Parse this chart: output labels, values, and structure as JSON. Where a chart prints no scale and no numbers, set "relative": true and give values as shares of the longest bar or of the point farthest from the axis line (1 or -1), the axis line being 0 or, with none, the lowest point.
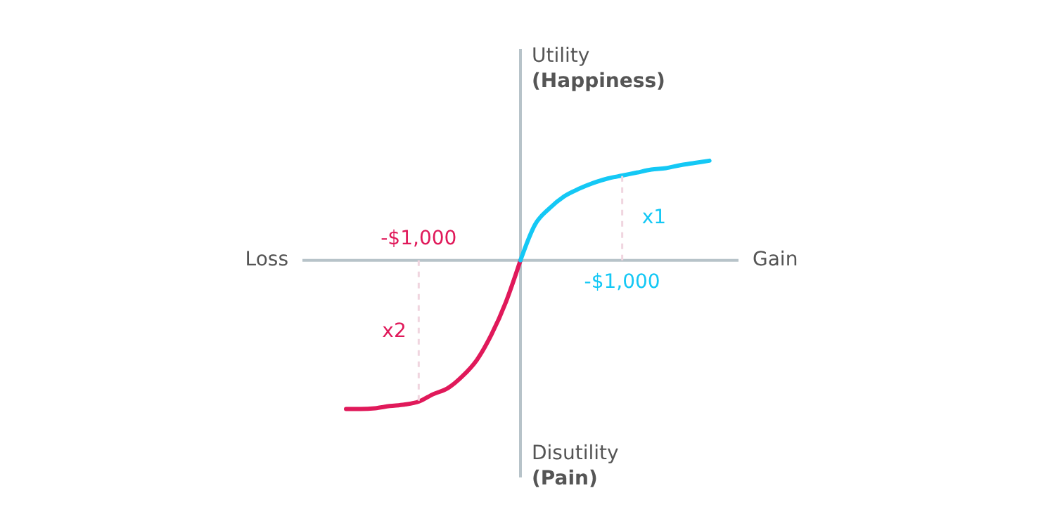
{
  "chart_data": {
    "type": "line",
    "relative": true,
    "xlabel": "Gain",
    "ylabel": "Utility\n(Happiness)",
    "categories": [
      null,
      null,
      null,
      null,
      null,
      null,
      null,
      null,
      null,
      null,
      null,
      null,
      null,
      null,
      null,
      null,
      null,
      null,
      null,
      null,
      null,
      null,
      null,
      null,
      null,
      null,
      null,
      null,
      null,
      null,
      null
    ],
    "series": [
      {
        "color": "#e0195a",
        "values": [
          null,
          null,
          null,
          -1.0,
          -1.0,
          -0.995,
          -0.98,
          -0.97,
          -0.95,
          -0.9,
          -0.86,
          -0.78,
          -0.67,
          -0.5,
          -0.28,
          0,
          null,
          null,
          null,
          null,
          null,
          null,
          null,
          null,
          null,
          null,
          null,
          null,
          null,
          null,
          null
        ]
      },
      {
        "color": "#14c8f5",
        "values": [
          null,
          null,
          null,
          null,
          null,
          null,
          null,
          null,
          null,
          null,
          null,
          null,
          null,
          null,
          null,
          0,
          0.24,
          0.35,
          0.43,
          0.48,
          0.52,
          0.55,
          0.57,
          0.59,
          0.61,
          0.62,
          0.64,
          0.655,
          0.67,
          null,
          null
        ]
      }
    ],
    "annotations": [
      "Loss",
      "Disutility\n(Pain)",
      "-$1,000",
      "x2",
      "x1",
      "-$1,000"
    ],
    "line_style": "solid",
    "marker": "none"
  }
}
